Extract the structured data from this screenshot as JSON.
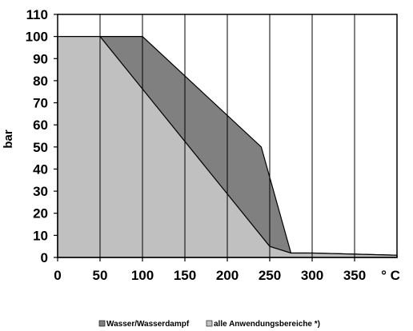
{
  "chart_data": {
    "type": "area",
    "xlabel": "° C",
    "ylabel": "bar",
    "xlim": [
      0,
      400
    ],
    "ylim": [
      0,
      110
    ],
    "x_ticks": [
      "0",
      "50",
      "100",
      "150",
      "200",
      "250",
      "300",
      "350"
    ],
    "y_ticks": [
      "0",
      "10",
      "20",
      "30",
      "40",
      "50",
      "60",
      "70",
      "80",
      "90",
      "100",
      "110"
    ],
    "grid": "vertical",
    "legend_position": "bottom",
    "series": [
      {
        "name": "Wasser/Wasserdampf",
        "color": "#808080",
        "points": [
          [
            0,
            100
          ],
          [
            100,
            100
          ],
          [
            240,
            50
          ],
          [
            275,
            2
          ],
          [
            300,
            2
          ],
          [
            400,
            1
          ]
        ]
      },
      {
        "name": "alle Anwendungsbereiche *)",
        "color": "#c0c0c0",
        "points": [
          [
            0,
            100
          ],
          [
            50,
            100
          ],
          [
            250,
            5
          ],
          [
            275,
            2
          ],
          [
            300,
            2
          ],
          [
            400,
            1
          ]
        ]
      }
    ]
  }
}
